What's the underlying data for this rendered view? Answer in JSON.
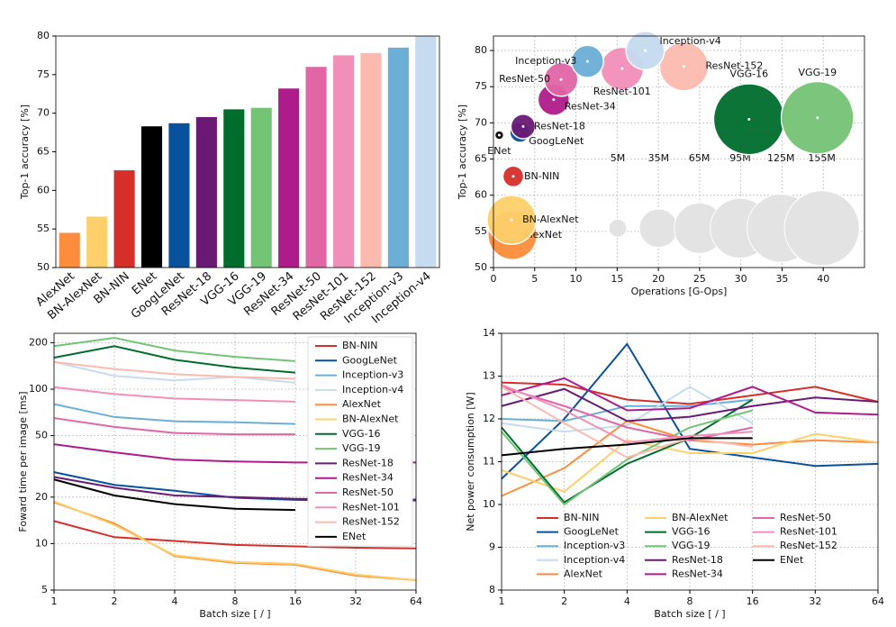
{
  "chart_data": [
    {
      "type": "bar",
      "ylabel": "Top-1 accuracy [%]",
      "categories": [
        "AlexNet",
        "BN-AlexNet",
        "BN-NIN",
        "ENet",
        "GoogLeNet",
        "ResNet-18",
        "VGG-16",
        "VGG-19",
        "ResNet-34",
        "ResNet-50",
        "ResNet-101",
        "ResNet-152",
        "Inception-v3",
        "Inception-v4"
      ],
      "values": [
        54.5,
        56.6,
        62.6,
        68.3,
        68.7,
        69.5,
        70.5,
        70.7,
        73.2,
        76.0,
        77.5,
        77.8,
        78.5,
        80.0
      ],
      "colors": [
        "#fd8d3c",
        "#fdd06b",
        "#d62f2a",
        "#000000",
        "#08519c",
        "#6a1a74",
        "#006d2c",
        "#74c476",
        "#ae1c8b",
        "#e066a6",
        "#f28fb8",
        "#fcbaae",
        "#6baed6",
        "#c6dbef"
      ],
      "ylim": [
        50,
        80
      ],
      "yticks": [
        50,
        55,
        60,
        65,
        70,
        75,
        80
      ],
      "grid": false
    },
    {
      "type": "scatter",
      "xlabel": "Operations [G-Ops]",
      "ylabel": "Top-1 accuracy [%]",
      "categories": [
        "AlexNet",
        "BN-AlexNet",
        "BN-NIN",
        "ENet",
        "GoogLeNet",
        "ResNet-18",
        "VGG-16",
        "VGG-19",
        "ResNet-34",
        "ResNet-50",
        "ResNet-101",
        "ResNet-152",
        "Inception-v3",
        "Inception-v4"
      ],
      "x": [
        2.3,
        2.2,
        2.4,
        0.7,
        3.2,
        3.6,
        31.0,
        39.3,
        7.3,
        8.2,
        15.6,
        23.1,
        11.4,
        18.4
      ],
      "values": [
        54.5,
        56.6,
        62.6,
        68.3,
        68.7,
        69.5,
        70.5,
        70.7,
        73.2,
        76.0,
        77.5,
        77.8,
        78.5,
        80.0
      ],
      "sizes": [
        61,
        61,
        7.6,
        0.4,
        7,
        11.7,
        138,
        144,
        21.8,
        25.6,
        44.5,
        60,
        23,
        35
      ],
      "colors": [
        "#fd8d3c",
        "#fdd06b",
        "#d62f2a",
        "#000000",
        "#08519c",
        "#6a1a74",
        "#006d2c",
        "#74c476",
        "#ae1c8b",
        "#e066a6",
        "#f28fb8",
        "#fcbaae",
        "#6baed6",
        "#c6dbef"
      ],
      "size_legend": [
        {
          "value": 5,
          "label": "5M"
        },
        {
          "value": 35,
          "label": "35M"
        },
        {
          "value": 65,
          "label": "65M"
        },
        {
          "value": 95,
          "label": "95M"
        },
        {
          "value": 125,
          "label": "125M"
        },
        {
          "value": 155,
          "label": "155M"
        }
      ],
      "size_legend_color": "#e3e3e3",
      "xlim": [
        0,
        45
      ],
      "xticks": [
        0,
        5,
        10,
        15,
        20,
        25,
        30,
        35,
        40
      ],
      "ylim": [
        50,
        82
      ],
      "yticks": [
        50,
        55,
        60,
        65,
        70,
        75,
        80
      ],
      "grid": true
    },
    {
      "type": "line",
      "xlabel": "Batch size [ / ]",
      "ylabel": "Foward time per image [ms]",
      "x": [
        1,
        2,
        4,
        8,
        16,
        32,
        64
      ],
      "xlog": true,
      "ylog": true,
      "xlim": [
        1,
        64
      ],
      "xticks": [
        1,
        2,
        4,
        8,
        16,
        32,
        64
      ],
      "ylim": [
        5,
        230
      ],
      "yticks": [
        5,
        10,
        20,
        50,
        100,
        200
      ],
      "grid": true,
      "legend": "upper right",
      "legend_columns": 1,
      "series": [
        {
          "name": "BN-NIN",
          "color": "#d62f2a",
          "values": [
            14,
            11,
            10.4,
            9.8,
            9.6,
            9.4,
            9.3
          ]
        },
        {
          "name": "GoogLeNet",
          "color": "#08519c",
          "values": [
            29,
            24,
            22,
            19.8,
            19.2,
            19.0,
            19.0
          ]
        },
        {
          "name": "Inception-v3",
          "color": "#6baed6",
          "values": [
            80,
            66,
            62,
            61,
            59.5,
            null,
            null
          ]
        },
        {
          "name": "Inception-v4",
          "color": "#c6dbef",
          "values": [
            150,
            122,
            114,
            120,
            110,
            null,
            null
          ]
        },
        {
          "name": "AlexNet",
          "color": "#fd8d3c",
          "values": [
            18.5,
            13.5,
            8.3,
            7.5,
            7.3,
            6.2,
            5.8
          ]
        },
        {
          "name": "BN-AlexNet",
          "color": "#fdd06b",
          "values": [
            18.8,
            13.2,
            8.4,
            7.6,
            7.4,
            6.3,
            5.8
          ]
        },
        {
          "name": "VGG-16",
          "color": "#006d2c",
          "values": [
            160,
            190,
            155,
            138,
            128,
            null,
            null
          ]
        },
        {
          "name": "VGG-19",
          "color": "#74c476",
          "values": [
            190,
            215,
            178,
            162,
            152,
            null,
            null
          ]
        },
        {
          "name": "ResNet-18",
          "color": "#6a1a74",
          "values": [
            27,
            23,
            20.5,
            20,
            19.5,
            19.3,
            19.3
          ]
        },
        {
          "name": "ResNet-34",
          "color": "#ae1c8b",
          "values": [
            44,
            39,
            35,
            34,
            33.5,
            33.5,
            33.5
          ]
        },
        {
          "name": "ResNet-50",
          "color": "#e066a6",
          "values": [
            65,
            57,
            52,
            51,
            51,
            null,
            null
          ]
        },
        {
          "name": "ResNet-101",
          "color": "#f28fb8",
          "values": [
            103,
            93,
            87,
            85,
            83,
            null,
            null
          ]
        },
        {
          "name": "ResNet-152",
          "color": "#fcbaae",
          "values": [
            150,
            135,
            125,
            120,
            117,
            null,
            null
          ]
        },
        {
          "name": "ENet",
          "color": "#000000",
          "values": [
            26,
            20.5,
            18,
            16.8,
            16.5,
            null,
            null
          ]
        }
      ]
    },
    {
      "type": "line",
      "xlabel": "Batch size [ / ]",
      "ylabel": "Net power consumption [W]",
      "x": [
        1,
        2,
        4,
        8,
        16,
        32,
        64
      ],
      "xlog": true,
      "ylog": false,
      "xlim": [
        1,
        64
      ],
      "xticks": [
        1,
        2,
        4,
        8,
        16,
        32,
        64
      ],
      "ylim": [
        8,
        14
      ],
      "yticks": [
        8,
        9,
        10,
        11,
        12,
        13,
        14
      ],
      "grid": true,
      "legend": "lower center",
      "legend_columns": 3,
      "series": [
        {
          "name": "BN-NIN",
          "color": "#d62f2a",
          "values": [
            12.85,
            12.8,
            12.45,
            12.35,
            12.55,
            12.75,
            12.4
          ]
        },
        {
          "name": "GoogLeNet",
          "color": "#08519c",
          "values": [
            10.6,
            12.0,
            13.75,
            11.3,
            11.1,
            10.9,
            10.95
          ]
        },
        {
          "name": "Inception-v3",
          "color": "#6baed6",
          "values": [
            12.0,
            11.95,
            12.3,
            12.3,
            12.45,
            null,
            null
          ]
        },
        {
          "name": "Inception-v4",
          "color": "#c6dbef",
          "values": [
            11.9,
            11.7,
            11.85,
            12.75,
            11.9,
            null,
            null
          ]
        },
        {
          "name": "AlexNet",
          "color": "#fd8d3c",
          "values": [
            10.2,
            10.85,
            11.95,
            11.5,
            11.4,
            11.5,
            11.45
          ]
        },
        {
          "name": "BN-AlexNet",
          "color": "#fdd06b",
          "values": [
            10.8,
            10.3,
            11.5,
            11.2,
            11.2,
            11.65,
            11.45
          ]
        },
        {
          "name": "VGG-16",
          "color": "#006d2c",
          "values": [
            11.8,
            10.05,
            10.95,
            11.55,
            12.45,
            null,
            null
          ]
        },
        {
          "name": "VGG-19",
          "color": "#74c476",
          "values": [
            11.7,
            10.0,
            11.05,
            11.8,
            12.2,
            null,
            null
          ]
        },
        {
          "name": "ResNet-18",
          "color": "#6a1a74",
          "values": [
            12.3,
            12.7,
            11.95,
            12.05,
            12.3,
            12.5,
            12.4
          ]
        },
        {
          "name": "ResNet-34",
          "color": "#ae1c8b",
          "values": [
            12.55,
            12.95,
            12.2,
            12.25,
            12.75,
            12.15,
            12.1
          ]
        },
        {
          "name": "ResNet-50",
          "color": "#e066a6",
          "values": [
            12.75,
            12.3,
            11.8,
            11.5,
            11.8,
            null,
            null
          ]
        },
        {
          "name": "ResNet-101",
          "color": "#f28fb8",
          "values": [
            12.8,
            12.2,
            11.45,
            11.6,
            11.7,
            null,
            null
          ]
        },
        {
          "name": "ResNet-152",
          "color": "#fcbaae",
          "values": [
            12.75,
            11.9,
            11.1,
            11.55,
            11.35,
            null,
            null
          ]
        },
        {
          "name": "ENet",
          "color": "#000000",
          "values": [
            11.15,
            11.3,
            11.4,
            11.55,
            11.55,
            null,
            null
          ]
        }
      ]
    }
  ]
}
